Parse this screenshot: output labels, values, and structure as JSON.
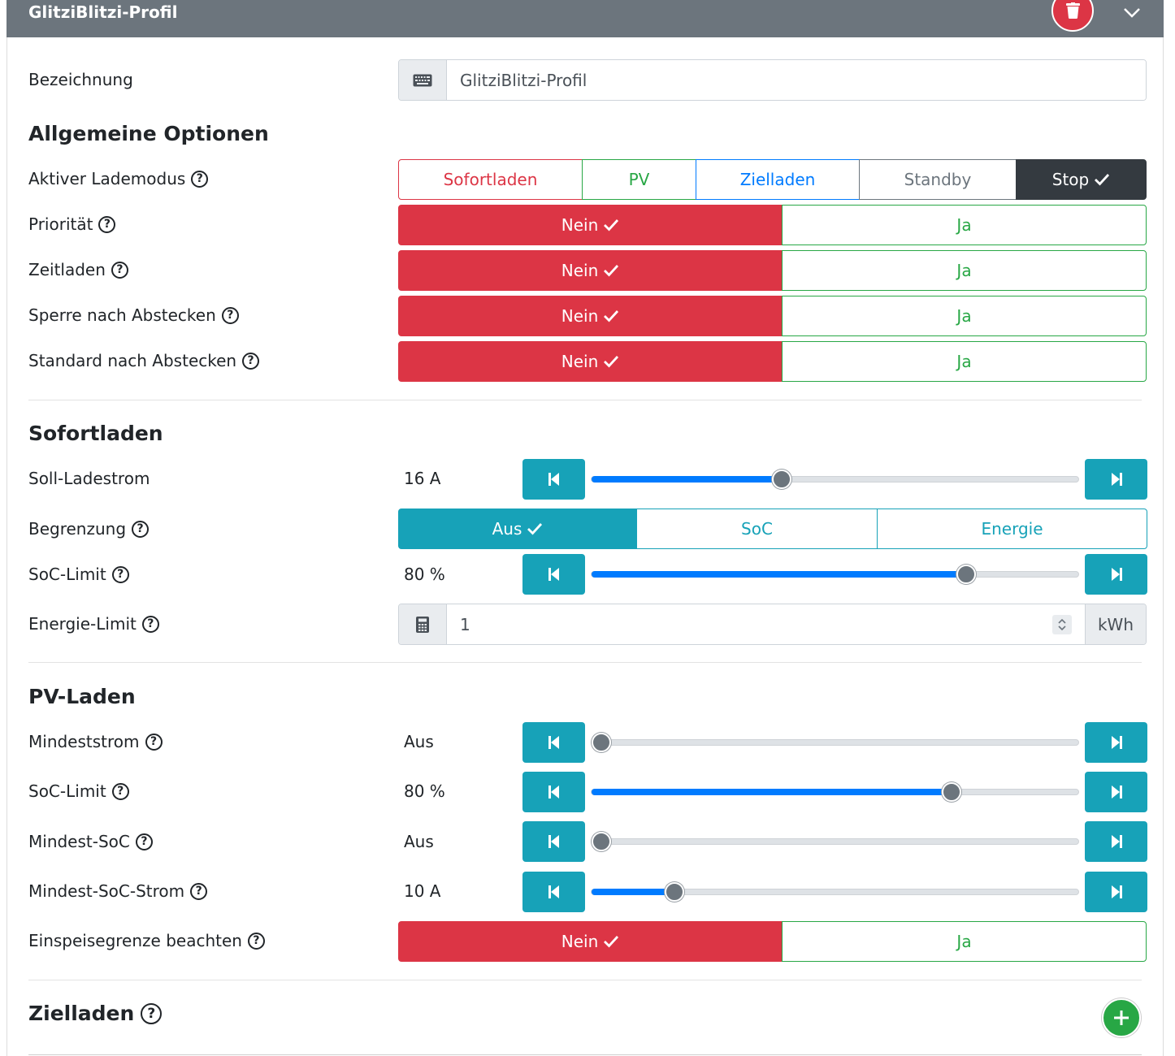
{
  "header": {
    "title": "GlitziBlitzi-Profil"
  },
  "bezeichnung": {
    "label": "Bezeichnung",
    "value": "GlitziBlitzi-Profil"
  },
  "allgemein": {
    "title": "Allgemeine Optionen",
    "lademodus": {
      "label": "Aktiver Lademodus",
      "options": [
        "Sofortladen",
        "PV",
        "Zielladen",
        "Standby",
        "Stop"
      ],
      "selected": "Stop"
    },
    "prioritaet": {
      "label": "Priorität",
      "no": "Nein",
      "yes": "Ja"
    },
    "zeitladen": {
      "label": "Zeitladen",
      "no": "Nein",
      "yes": "Ja"
    },
    "sperre": {
      "label": "Sperre nach Abstecken",
      "no": "Nein",
      "yes": "Ja"
    },
    "standard": {
      "label": "Standard nach Abstecken",
      "no": "Nein",
      "yes": "Ja"
    }
  },
  "sofortladen": {
    "title": "Sofortladen",
    "soll": {
      "label": "Soll-Ladestrom",
      "value": "16 A",
      "level": 0.39
    },
    "begrenzung": {
      "label": "Begrenzung",
      "options": [
        "Aus",
        "SoC",
        "Energie"
      ],
      "selected": "Aus"
    },
    "soc_limit": {
      "label": "SoC-Limit",
      "value": "80 %",
      "level": 0.77
    },
    "energie_limit": {
      "label": "Energie-Limit",
      "value": "1",
      "unit": "kWh"
    }
  },
  "pv": {
    "title": "PV-Laden",
    "mindeststrom": {
      "label": "Mindeststrom",
      "value": "Aus",
      "level": 0.0
    },
    "soc_limit": {
      "label": "SoC-Limit",
      "value": "80 %",
      "level": 0.74
    },
    "mindest_soc": {
      "label": "Mindest-SoC",
      "value": "Aus",
      "level": 0.0
    },
    "mindest_soc_strom": {
      "label": "Mindest-SoC-Strom",
      "value": "10 A",
      "level": 0.17
    },
    "einspeise": {
      "label": "Einspeisegrenze beachten",
      "no": "Nein",
      "yes": "Ja"
    }
  },
  "zielladen": {
    "title": "Zielladen"
  },
  "colors": {
    "header": "#6c757d",
    "danger": "#dc3545",
    "success": "#28a745",
    "info": "#17a2b8",
    "primary": "#007bff",
    "dark": "#343a40"
  }
}
